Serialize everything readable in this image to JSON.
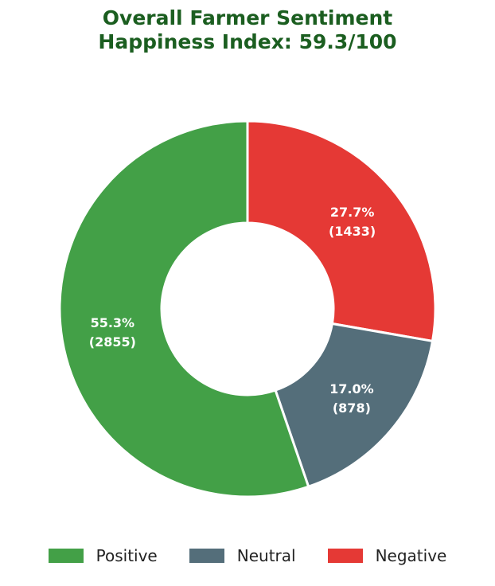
{
  "title_line1": "Overall Farmer Sentiment",
  "title_line2": "Happiness Index: 59.3/100",
  "chart_data": {
    "type": "pie",
    "donut": true,
    "legend_position": "bottom",
    "slices": [
      {
        "name": "Positive",
        "value": 2855,
        "pct_label": "55.3%",
        "count_label": "(2855)",
        "color": "#43a047"
      },
      {
        "name": "Neutral",
        "value": 878,
        "pct_label": "17.0%",
        "count_label": "(878)",
        "color": "#546e7a"
      },
      {
        "name": "Negative",
        "value": 1433,
        "pct_label": "27.7%",
        "count_label": "(1433)",
        "color": "#e53935"
      }
    ]
  },
  "legend": [
    {
      "label": "Positive",
      "color": "#43a047"
    },
    {
      "label": "Neutral",
      "color": "#546e7a"
    },
    {
      "label": "Negative",
      "color": "#e53935"
    }
  ]
}
